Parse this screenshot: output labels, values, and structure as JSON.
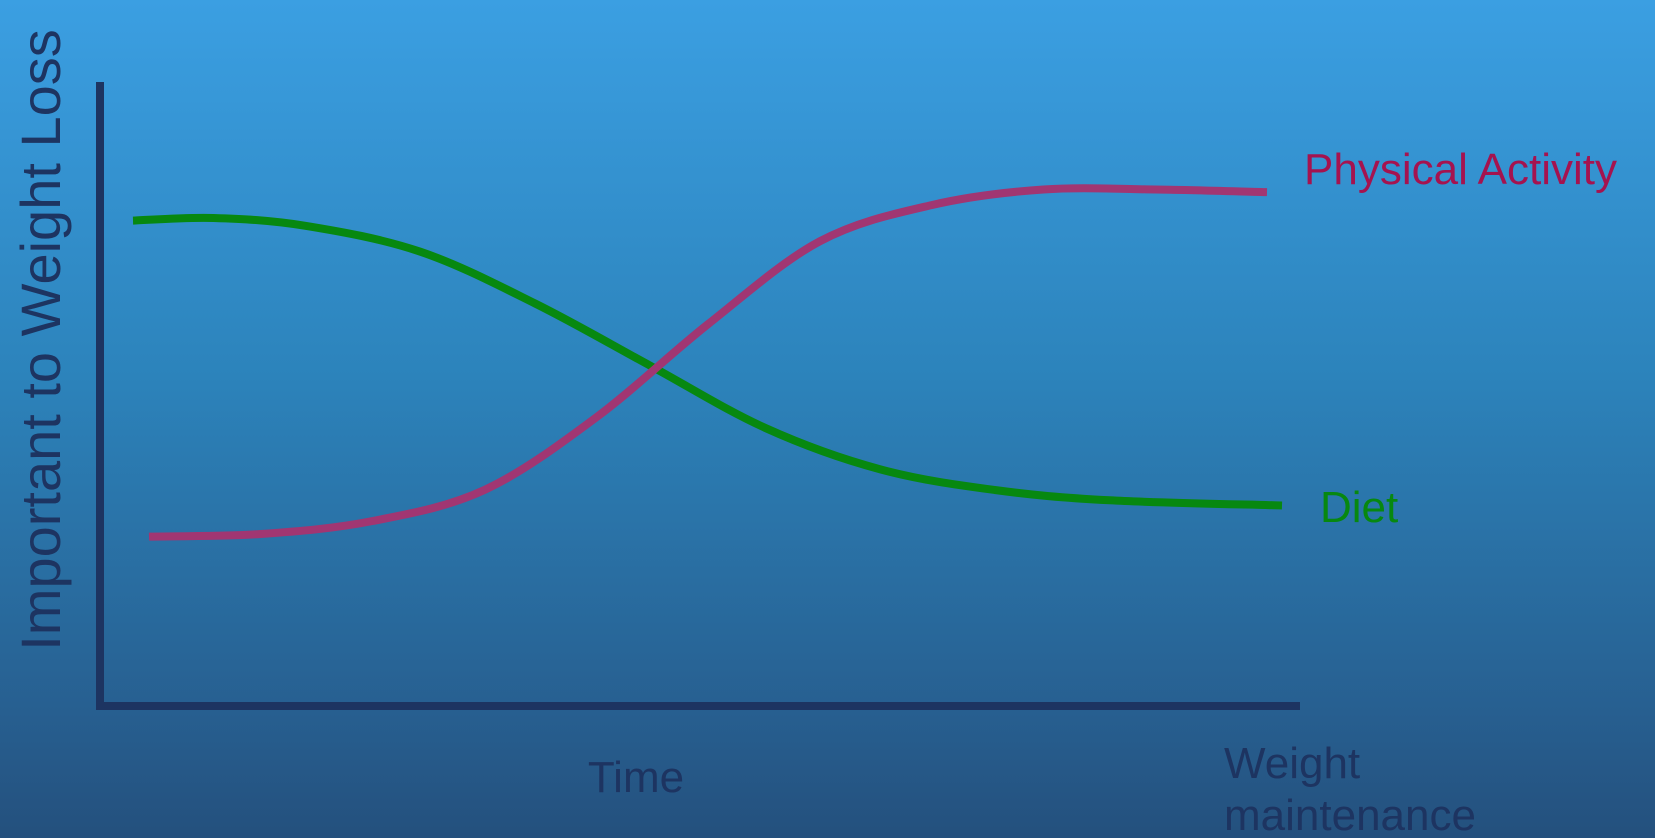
{
  "chart_data": {
    "type": "line",
    "ylabel": "Important to Weight Loss",
    "xlabel": "Time",
    "x_end_label_lines": [
      "Weight",
      "maintenance"
    ],
    "xlim": [
      0,
      100
    ],
    "ylim": [
      0,
      100
    ],
    "grid": false,
    "series": [
      {
        "name": "Diet",
        "color": "#078810",
        "x": [
          0,
          7,
          15,
          25,
          35,
          45,
          55,
          65,
          75,
          85,
          100
        ],
        "y": [
          80,
          80.5,
          79,
          74,
          64,
          52,
          40,
          32,
          28,
          26,
          25
        ]
      },
      {
        "name": "Physical Activity",
        "color": "#a13672",
        "x": [
          0,
          10,
          20,
          30,
          40,
          50,
          60,
          70,
          80,
          90,
          100
        ],
        "y": [
          19,
          19.5,
          22,
          28,
          42,
          60,
          76,
          83,
          86,
          86,
          85.5
        ]
      }
    ],
    "colors": {
      "axis": "#1d3461",
      "axis_text": "#1d3461",
      "diet_label": "#078810",
      "activity_label": "#a5134f"
    }
  }
}
